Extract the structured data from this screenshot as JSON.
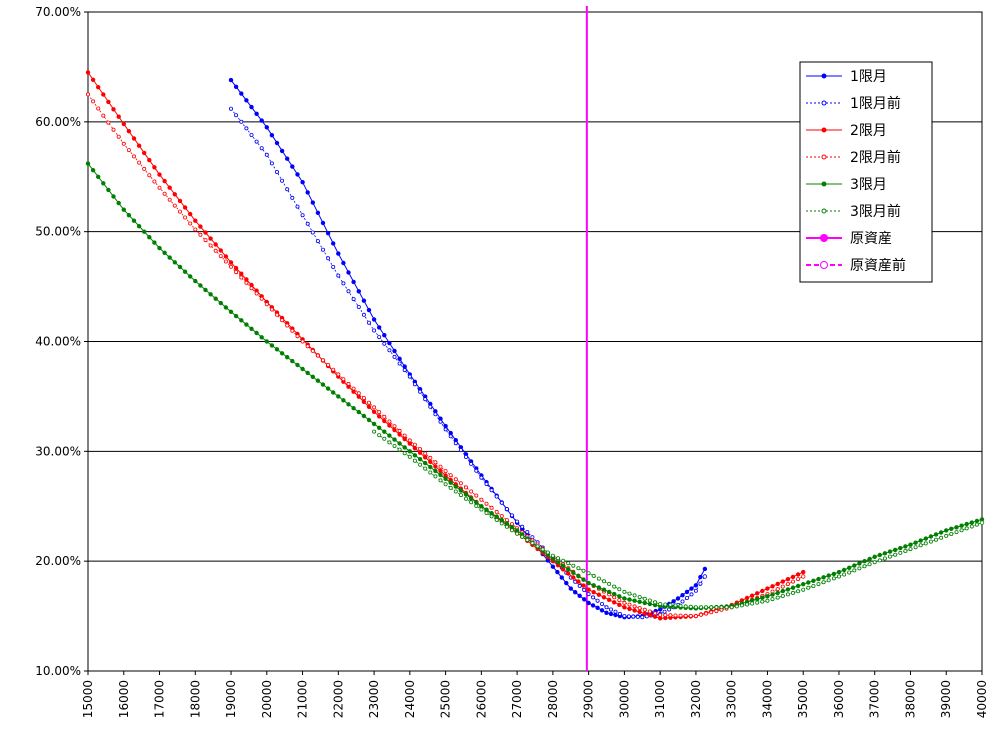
{
  "chart_data": {
    "type": "line",
    "title": "",
    "xlabel": "",
    "ylabel": "",
    "xlim": [
      15000,
      40000
    ],
    "ylim": [
      10,
      70
    ],
    "y_tick_labels": [
      "10.00%",
      "20.00%",
      "30.00%",
      "40.00%",
      "50.00%",
      "60.00%",
      "70.00%"
    ],
    "y_tick_values": [
      10,
      20,
      30,
      40,
      50,
      60,
      70
    ],
    "x_tick_values": [
      15000,
      16000,
      17000,
      18000,
      19000,
      20000,
      21000,
      22000,
      23000,
      24000,
      25000,
      26000,
      27000,
      28000,
      29000,
      30000,
      31000,
      32000,
      33000,
      34000,
      35000,
      36000,
      37000,
      38000,
      39000,
      40000
    ],
    "x_tick_labels": [
      "15000",
      "16000",
      "17000",
      "18000",
      "19000",
      "20000",
      "21000",
      "22000",
      "23000",
      "24000",
      "25000",
      "26000",
      "27000",
      "28000",
      "29000",
      "30000",
      "31000",
      "32000",
      "33000",
      "34000",
      "35000",
      "36000",
      "37000",
      "38000",
      "39000",
      "40000"
    ],
    "grid": "horizontal",
    "legend_position": "top-right",
    "underlying_price": 28950,
    "series": [
      {
        "name": "1限月",
        "color": "#0000ff",
        "style": "solid",
        "x": [
          19000,
          20000,
          21000,
          22000,
          23000,
          24000,
          25000,
          26000,
          27000,
          28000,
          28500,
          29000,
          29500,
          30000,
          30500,
          31000,
          31500,
          32000,
          32250
        ],
        "y": [
          63.8,
          59.5,
          54.5,
          48.0,
          42.0,
          37.0,
          32.3,
          27.8,
          23.5,
          19.5,
          17.5,
          16.2,
          15.3,
          14.9,
          15.0,
          15.6,
          16.6,
          17.8,
          19.3
        ]
      },
      {
        "name": "1限月前",
        "color": "#0000ff",
        "style": "dotted",
        "x": [
          19000,
          20000,
          21000,
          22000,
          23000,
          24000,
          25000,
          26000,
          27000,
          28000,
          28500,
          29000,
          29500,
          30000,
          30500,
          31000,
          31500,
          32000,
          32250
        ],
        "y": [
          61.2,
          57.0,
          51.5,
          46.0,
          41.0,
          36.8,
          32.0,
          27.6,
          23.6,
          20.3,
          18.5,
          17.0,
          15.8,
          15.0,
          14.9,
          15.2,
          16.0,
          17.3,
          18.6
        ]
      },
      {
        "name": "2限月",
        "color": "#ff0000",
        "style": "solid",
        "x": [
          15000,
          16000,
          17000,
          18000,
          19000,
          20000,
          21000,
          22000,
          23000,
          24000,
          25000,
          26000,
          27000,
          28000,
          29000,
          30000,
          31000,
          32000,
          33000,
          34000,
          35000
        ],
        "y": [
          64.5,
          59.8,
          55.2,
          51.0,
          47.2,
          43.6,
          40.2,
          36.8,
          33.6,
          30.7,
          27.8,
          25.0,
          22.6,
          20.0,
          17.4,
          15.8,
          14.8,
          15.0,
          16.0,
          17.5,
          19.0
        ]
      },
      {
        "name": "2限月前",
        "color": "#ff0000",
        "style": "dotted",
        "x": [
          15000,
          16000,
          17000,
          18000,
          19000,
          20000,
          21000,
          22000,
          23000,
          24000,
          25000,
          26000,
          27000,
          28000,
          29000,
          30000,
          31000,
          32000,
          33000,
          34000,
          35000
        ],
        "y": [
          62.5,
          58.0,
          54.0,
          50.2,
          46.8,
          43.4,
          40.0,
          37.0,
          34.0,
          31.0,
          28.2,
          25.6,
          23.0,
          20.4,
          18.0,
          16.2,
          15.1,
          15.0,
          15.8,
          17.0,
          18.6
        ]
      },
      {
        "name": "3限月",
        "color": "#008000",
        "style": "solid",
        "x": [
          15000,
          16000,
          17000,
          18000,
          19000,
          20000,
          21000,
          22000,
          23000,
          24000,
          25000,
          26000,
          27000,
          28000,
          29000,
          30000,
          31000,
          32000,
          33000,
          34000,
          35000,
          36000,
          37000,
          38000,
          39000,
          40000
        ],
        "y": [
          56.2,
          52.0,
          48.5,
          45.5,
          42.7,
          40.0,
          37.5,
          35.0,
          32.5,
          30.0,
          27.5,
          25.0,
          22.8,
          20.2,
          18.0,
          16.6,
          15.9,
          15.7,
          15.9,
          16.8,
          17.9,
          19.0,
          20.4,
          21.5,
          22.8,
          23.8
        ]
      },
      {
        "name": "3限月前",
        "color": "#008000",
        "style": "dotted",
        "x": [
          23000,
          24000,
          25000,
          26000,
          27000,
          28000,
          29000,
          30000,
          31000,
          32000,
          33000,
          34000,
          35000,
          36000,
          37000,
          38000,
          39000,
          40000
        ],
        "y": [
          31.8,
          29.5,
          27.0,
          24.7,
          22.5,
          20.5,
          18.9,
          17.2,
          16.1,
          15.8,
          15.8,
          16.4,
          17.4,
          18.6,
          19.9,
          21.1,
          22.3,
          23.5
        ]
      },
      {
        "name": "原資産",
        "color": "#ff00ff",
        "style": "solid"
      },
      {
        "name": "原資産前",
        "color": "#ff00ff",
        "style": "dashed"
      }
    ]
  }
}
